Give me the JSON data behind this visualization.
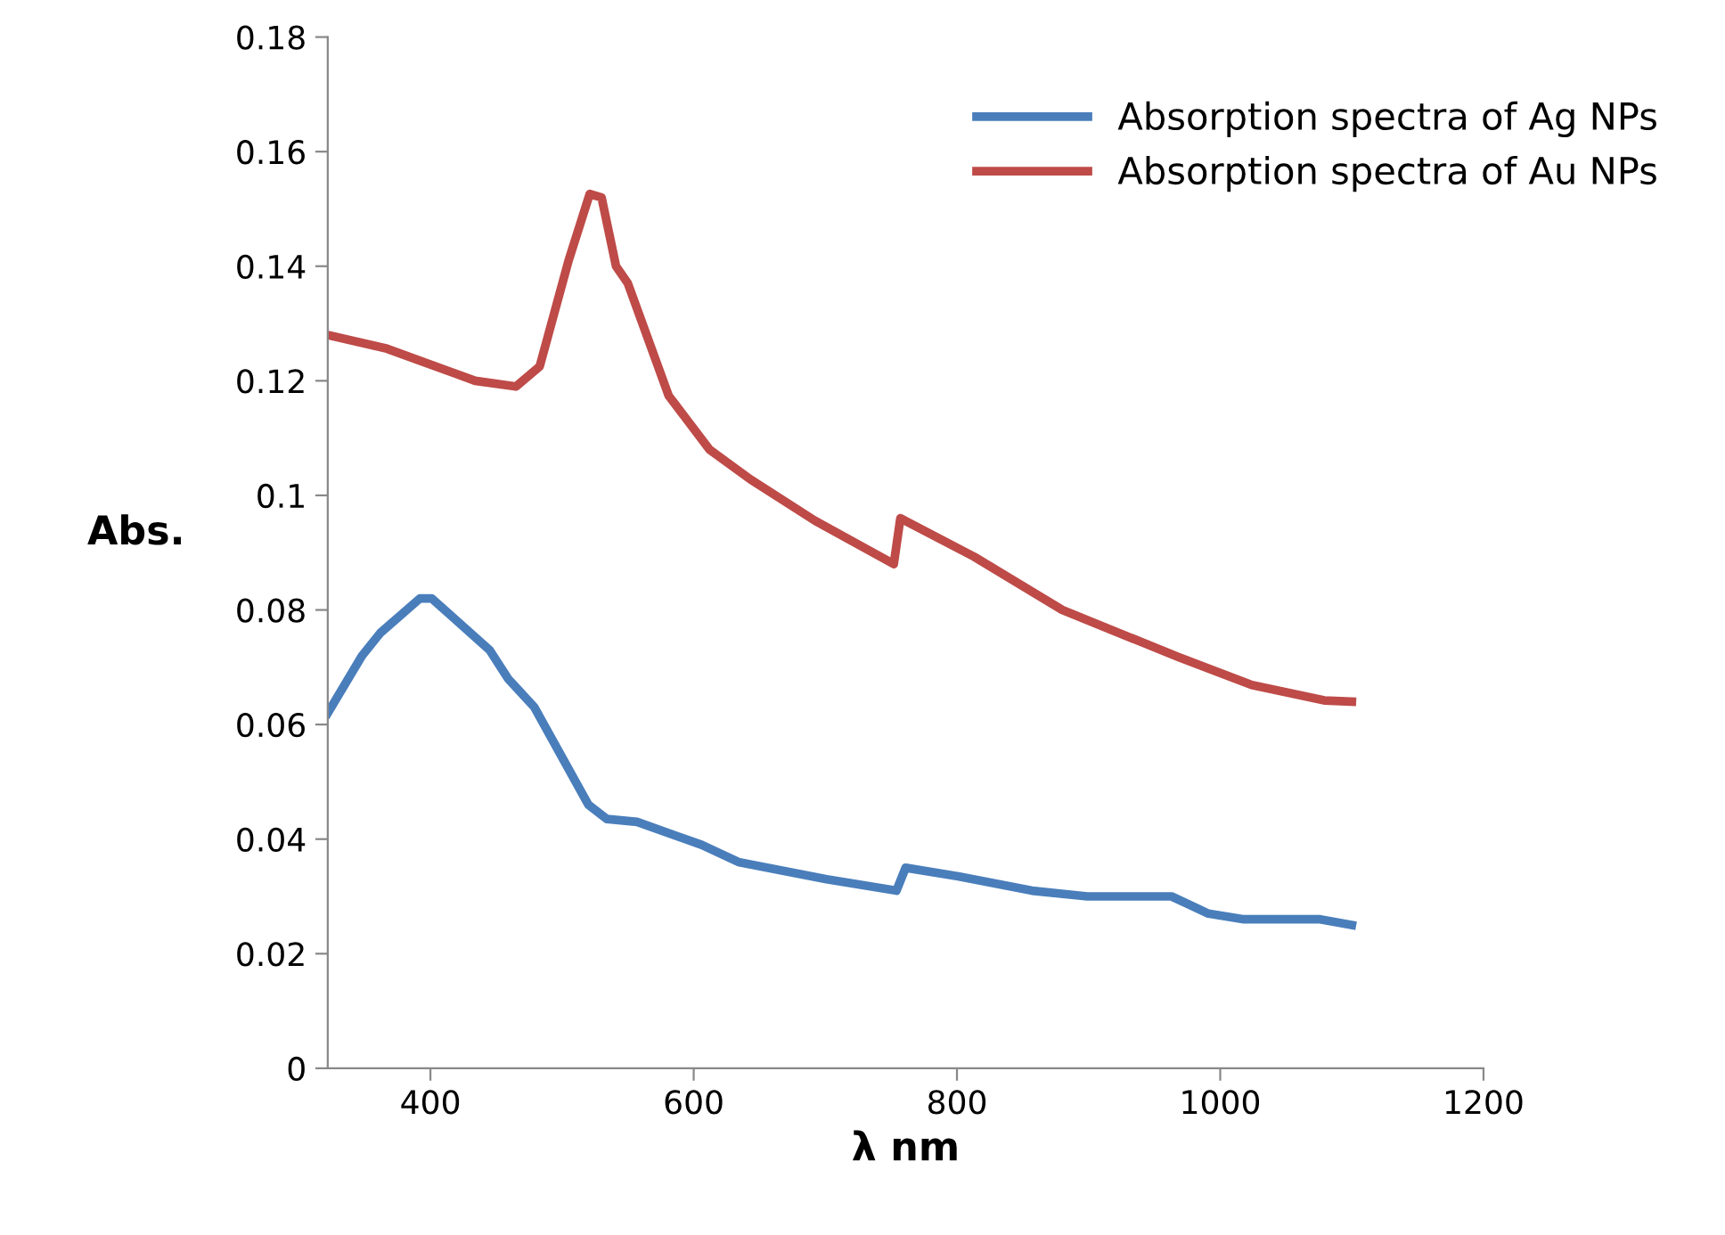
{
  "chart_data": {
    "type": "line",
    "xlabel": "λ nm",
    "ylabel": "Abs.",
    "xlim": [
      322,
      1200
    ],
    "xticks": [
      400,
      600,
      800,
      1000,
      1200
    ],
    "ylim": [
      0,
      0.18
    ],
    "yticks": [
      0,
      0.02,
      0.04,
      0.06,
      0.08,
      0.1,
      0.12,
      0.14,
      0.16,
      0.18
    ],
    "grid": false,
    "legend": "top right",
    "marker": "none",
    "line_style": "solid",
    "series": [
      {
        "name": "Absorption spectra of Ag NPs",
        "color": "#4a7ebb",
        "x": [
          322,
          348,
          362,
          392,
          401,
          445,
          459,
          479,
          520,
          534,
          557,
          606,
          634,
          701,
          754,
          761,
          801,
          857,
          899,
          963,
          991,
          1018,
          1076,
          1100
        ],
        "values": [
          0.062,
          0.072,
          0.076,
          0.082,
          0.082,
          0.073,
          0.068,
          0.063,
          0.046,
          0.0435,
          0.043,
          0.039,
          0.036,
          0.033,
          0.031,
          0.035,
          0.0335,
          0.031,
          0.03,
          0.03,
          0.027,
          0.026,
          0.026,
          0.025
        ]
      },
      {
        "name": "Absorption spectra of Au NPs",
        "color": "#be4b48",
        "x": [
          322,
          367,
          434,
          465,
          483,
          505,
          521,
          530,
          541,
          550,
          581,
          612,
          643,
          692,
          752,
          757,
          813,
          880,
          968,
          1024,
          1079,
          1100
        ],
        "values": [
          0.128,
          0.1256,
          0.12,
          0.119,
          0.1225,
          0.141,
          0.1526,
          0.152,
          0.14,
          0.137,
          0.1174,
          0.108,
          0.1028,
          0.0956,
          0.088,
          0.096,
          0.0893,
          0.08,
          0.0718,
          0.0669,
          0.0642,
          0.064
        ]
      }
    ]
  }
}
